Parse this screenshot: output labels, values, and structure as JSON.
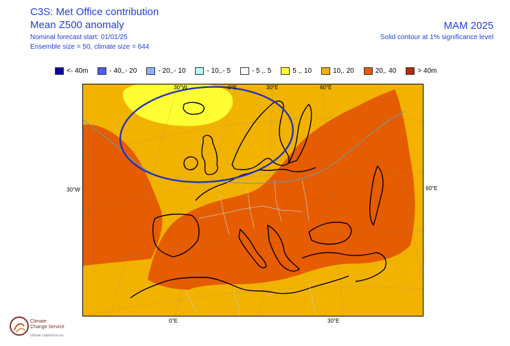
{
  "header": {
    "title": "C3S: Met Office contribution",
    "subtitle": "Mean Z500 anomaly",
    "forecast_start": "Nominal forecast start: 01/01/25",
    "ensemble": "Ensemble size = 50, climate size = 644",
    "season": "MAM 2025",
    "significance": "Solid contour at 1% significance level"
  },
  "legend": [
    {
      "label": "<- 40m",
      "color": "#0a0a96"
    },
    {
      "label": "- 40,.- 20",
      "color": "#4d5ef0"
    },
    {
      "label": "- 20,.- 10",
      "color": "#8fb0f5"
    },
    {
      "label": "- 10,.- 5",
      "color": "#b8f5f5"
    },
    {
      "label": "- 5 ,. 5",
      "color": "#ffffff"
    },
    {
      "label": "5 ,. 10",
      "color": "#ffff33"
    },
    {
      "label": "10,. 20",
      "color": "#f2b200"
    },
    {
      "label": "20,. 40",
      "color": "#e65c00"
    },
    {
      "label": ">  40m",
      "color": "#b22c0c"
    }
  ],
  "map_labels": {
    "top_30w": "30°W",
    "top_0": "0°E",
    "top_30e": "30°E",
    "top_60e": "60°E",
    "left_30w": "30°W",
    "right_60e": "60°E",
    "bottom_0": "0°E",
    "bottom_30e": "30°E"
  },
  "logo": {
    "name_line1": "Climate",
    "name_line2": "Change Service",
    "url": "climate.copernicus.eu"
  },
  "colors": {
    "header_text": "#1f3fd6",
    "significance_contour": "#2233bb",
    "background_field": "#f2b200",
    "high_anomaly": "#e65c00",
    "low_anomaly": "#ffff33"
  }
}
